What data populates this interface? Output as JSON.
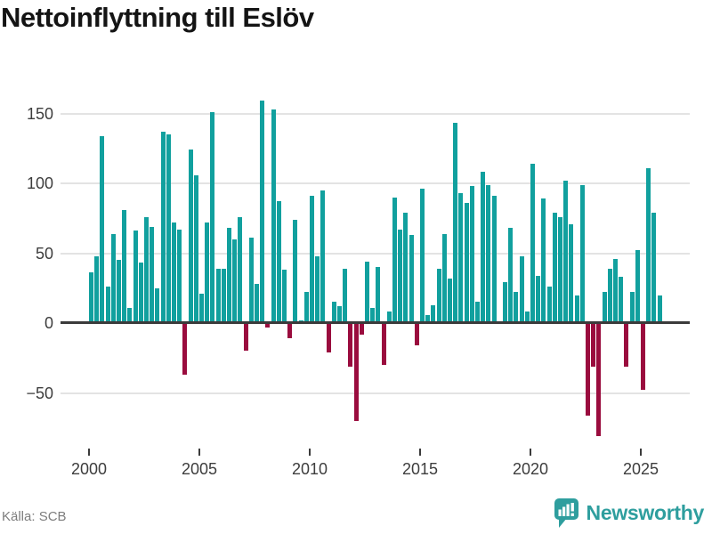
{
  "header": {
    "title": "Nettoinflyttning till Eslöv"
  },
  "footer": {
    "source": "Källa: SCB",
    "brand": "Newsworthy"
  },
  "colors": {
    "positive": "#11a09e",
    "negative": "#9a0c3e",
    "brand": "#2e9e9e",
    "axis": "#3b3b3b",
    "grid": "#e3e3e3"
  },
  "y_axis": {
    "tick_labels": [
      "150",
      "100",
      "50",
      "0",
      "−50"
    ],
    "tick_values": [
      150,
      100,
      50,
      0,
      -50
    ]
  },
  "x_axis": {
    "tick_labels": [
      "2000",
      "2005",
      "2010",
      "2015",
      "2020",
      "2025"
    ],
    "tick_quarter_offsets": [
      0,
      20,
      40,
      60,
      80,
      100
    ]
  },
  "chart_data": {
    "type": "bar",
    "title": "Nettoinflyttning till Eslöv",
    "x_unit": "quarter",
    "start_year": 2000,
    "start_quarter": 1,
    "end_year": 2025,
    "end_quarter": 4,
    "grid": true,
    "legend": false,
    "ylim": [
      -85,
      165
    ],
    "yticks": [
      150,
      100,
      50,
      0,
      -50
    ],
    "series": [
      {
        "name": "Nettoinflyttning",
        "values": [
          36,
          48,
          134,
          26,
          64,
          45,
          81,
          11,
          66,
          43,
          76,
          69,
          25,
          137,
          135,
          72,
          67,
          -37,
          124,
          106,
          21,
          72,
          151,
          39,
          39,
          68,
          60,
          76,
          -20,
          61,
          28,
          159,
          -3,
          153,
          87,
          38,
          -11,
          74,
          2,
          22,
          91,
          48,
          95,
          -21,
          15,
          12,
          39,
          -31,
          -70,
          -8,
          44,
          11,
          40,
          -30,
          8,
          90,
          67,
          79,
          63,
          -16,
          96,
          6,
          13,
          39,
          64,
          32,
          143,
          93,
          86,
          98,
          15,
          108,
          99,
          91,
          0,
          29,
          68,
          22,
          48,
          8,
          114,
          34,
          89,
          26,
          79,
          76,
          102,
          71,
          20,
          99,
          -66,
          -31,
          -81,
          22,
          39,
          46,
          33,
          -31,
          22,
          52,
          -48,
          111,
          79,
          20
        ]
      }
    ]
  }
}
